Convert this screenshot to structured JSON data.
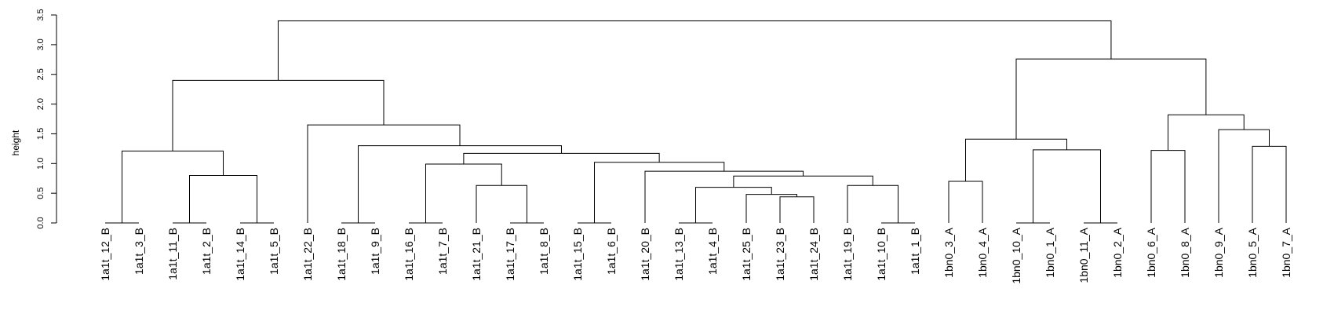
{
  "chart_data": {
    "type": "dendrogram",
    "title": "",
    "xlabel": "",
    "ylabel": "height",
    "ylim": [
      0,
      3.5
    ],
    "yticks": [
      "0.0",
      "0.5",
      "1.0",
      "1.5",
      "2.0",
      "2.5",
      "3.0",
      "3.5"
    ],
    "leaves": [
      "1a1t_12_B",
      "1a1t_3_B",
      "1a1t_11_B",
      "1a1t_2_B",
      "1a1t_14_B",
      "1a1t_5_B",
      "1a1t_22_B",
      "1a1t_18_B",
      "1a1t_9_B",
      "1a1t_16_B",
      "1a1t_7_B",
      "1a1t_21_B",
      "1a1t_17_B",
      "1a1t_8_B",
      "1a1t_15_B",
      "1a1t_6_B",
      "1a1t_20_B",
      "1a1t_13_B",
      "1a1t_4_B",
      "1a1t_25_B",
      "1a1t_23_B",
      "1a1t_24_B",
      "1a1t_19_B",
      "1a1t_10_B",
      "1a1t_1_B",
      "1bn0_3_A",
      "1bn0_4_A",
      "1bn0_10_A",
      "1bn0_1_A",
      "1bn0_11_A",
      "1bn0_2_A",
      "1bn0_6_A",
      "1bn0_8_A",
      "1bn0_9_A",
      "1bn0_5_A",
      "1bn0_7_A"
    ],
    "merges": [
      [
        -1,
        -2,
        0.0
      ],
      [
        -3,
        -4,
        0.0
      ],
      [
        -5,
        -6,
        0.0
      ],
      [
        -8,
        -9,
        0.0
      ],
      [
        -10,
        -11,
        0.0
      ],
      [
        -13,
        -14,
        0.0
      ],
      [
        -15,
        -16,
        0.0
      ],
      [
        -18,
        -19,
        0.0
      ],
      [
        -24,
        -25,
        0.0
      ],
      [
        -28,
        -29,
        0.0
      ],
      [
        -30,
        -31,
        0.0
      ],
      [
        -22,
        -21,
        0.44
      ],
      [
        -20,
        12,
        0.48
      ],
      [
        8,
        13,
        0.6
      ],
      [
        -12,
        6,
        0.63
      ],
      [
        -23,
        9,
        0.63
      ],
      [
        -26,
        -27,
        0.7
      ],
      [
        14,
        16,
        0.79
      ],
      [
        2,
        3,
        0.8
      ],
      [
        -17,
        18,
        0.87
      ],
      [
        5,
        15,
        0.99
      ],
      [
        7,
        20,
        1.02
      ],
      [
        1,
        19,
        1.21
      ],
      [
        -32,
        -33,
        1.22
      ],
      [
        10,
        11,
        1.23
      ],
      [
        -35,
        -36,
        1.29
      ],
      [
        21,
        22,
        1.17
      ],
      [
        4,
        27,
        1.3
      ],
      [
        17,
        25,
        1.41
      ],
      [
        -34,
        26,
        1.57
      ],
      [
        -7,
        28,
        1.65
      ],
      [
        24,
        30,
        1.82
      ],
      [
        23,
        31,
        2.4
      ],
      [
        29,
        32,
        2.76
      ],
      [
        33,
        34,
        3.4
      ]
    ]
  }
}
